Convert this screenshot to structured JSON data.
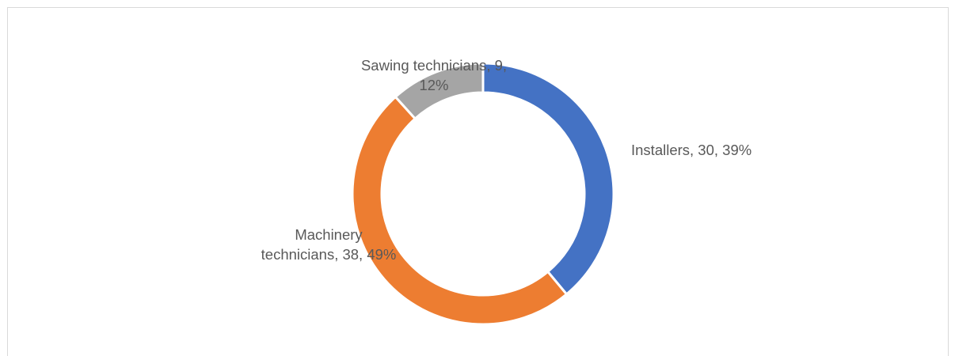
{
  "chart_data": {
    "type": "pie",
    "style": "donut",
    "title": "",
    "series": [
      {
        "name": "",
        "slices": [
          {
            "category": "Installers",
            "value": 30,
            "percent": 39,
            "color": "#4472C4",
            "label_lines": [
              "Installers, 30, 39%"
            ]
          },
          {
            "category": "Machinery technicians",
            "value": 38,
            "percent": 49,
            "color": "#ED7D31",
            "label_lines": [
              "Machinery",
              "technicians, 38, 49%"
            ]
          },
          {
            "category": "Sawing technicians",
            "value": 9,
            "percent": 12,
            "color": "#A5A5A5",
            "label_lines": [
              "Sawing technicians, 9,",
              "12%"
            ]
          }
        ]
      }
    ],
    "start_angle_deg": 0,
    "direction": "clockwise",
    "legend": "none"
  }
}
